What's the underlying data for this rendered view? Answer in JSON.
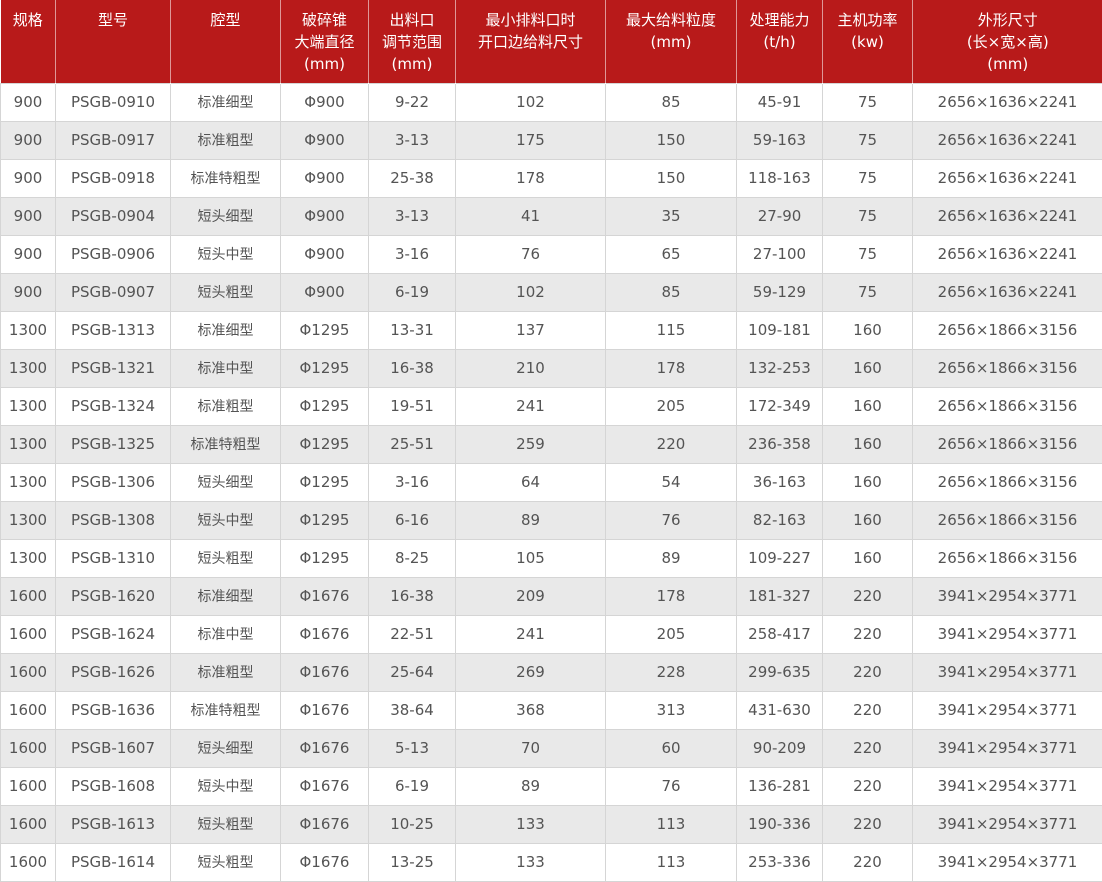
{
  "theme": {
    "header_bg": "#b81a1a",
    "header_text": "#ffffff",
    "row_bg": "#ffffff",
    "row_alt_bg": "#e9e9e9",
    "border_color": "#d5d5d5",
    "cell_text": "#545454"
  },
  "chart_data": {
    "type": "table",
    "columns": [
      {
        "key": "spec",
        "label": "规格",
        "lines": [
          "规格"
        ]
      },
      {
        "key": "model",
        "label": "型号",
        "lines": [
          "型号"
        ]
      },
      {
        "key": "cavity-type",
        "label": "腔型",
        "lines": [
          "腔型"
        ]
      },
      {
        "key": "cone-diameter",
        "label": "破碎锥大端直径(mm)",
        "lines": [
          "破碎锥",
          "大端直径",
          "(mm)"
        ]
      },
      {
        "key": "discharge-range",
        "label": "出料口调节范围(mm)",
        "lines": [
          "出料口",
          "调节范围",
          "(mm)"
        ]
      },
      {
        "key": "min-discharge-feed-size",
        "label": "最小排料口时开口边给料尺寸",
        "lines": [
          "最小排料口时",
          "开口边给料尺寸"
        ]
      },
      {
        "key": "max-feed-size",
        "label": "最大给料粒度(mm)",
        "lines": [
          "最大给料粒度",
          "(mm)"
        ]
      },
      {
        "key": "capacity",
        "label": "处理能力(t/h)",
        "lines": [
          "处理能力",
          "(t/h)"
        ]
      },
      {
        "key": "motor-power",
        "label": "主机功率(kw)",
        "lines": [
          "主机功率",
          "(kw)"
        ]
      },
      {
        "key": "dimensions",
        "label": "外形尺寸(长×宽×高)(mm)",
        "lines": [
          "外形尺寸",
          "(长×宽×高)",
          "(mm)"
        ]
      }
    ],
    "rows": [
      [
        "900",
        "PSGB-0910",
        "标准细型",
        "Φ900",
        "9-22",
        "102",
        "85",
        "45-91",
        "75",
        "2656×1636×2241"
      ],
      [
        "900",
        "PSGB-0917",
        "标准粗型",
        "Φ900",
        "3-13",
        "175",
        "150",
        "59-163",
        "75",
        "2656×1636×2241"
      ],
      [
        "900",
        "PSGB-0918",
        "标准特粗型",
        "Φ900",
        "25-38",
        "178",
        "150",
        "118-163",
        "75",
        "2656×1636×2241"
      ],
      [
        "900",
        "PSGB-0904",
        "短头细型",
        "Φ900",
        "3-13",
        "41",
        "35",
        "27-90",
        "75",
        "2656×1636×2241"
      ],
      [
        "900",
        "PSGB-0906",
        "短头中型",
        "Φ900",
        "3-16",
        "76",
        "65",
        "27-100",
        "75",
        "2656×1636×2241"
      ],
      [
        "900",
        "PSGB-0907",
        "短头粗型",
        "Φ900",
        "6-19",
        "102",
        "85",
        "59-129",
        "75",
        "2656×1636×2241"
      ],
      [
        "1300",
        "PSGB-1313",
        "标准细型",
        "Φ1295",
        "13-31",
        "137",
        "115",
        "109-181",
        "160",
        "2656×1866×3156"
      ],
      [
        "1300",
        "PSGB-1321",
        "标准中型",
        "Φ1295",
        "16-38",
        "210",
        "178",
        "132-253",
        "160",
        "2656×1866×3156"
      ],
      [
        "1300",
        "PSGB-1324",
        "标准粗型",
        "Φ1295",
        "19-51",
        "241",
        "205",
        "172-349",
        "160",
        "2656×1866×3156"
      ],
      [
        "1300",
        "PSGB-1325",
        "标准特粗型",
        "Φ1295",
        "25-51",
        "259",
        "220",
        "236-358",
        "160",
        "2656×1866×3156"
      ],
      [
        "1300",
        "PSGB-1306",
        "短头细型",
        "Φ1295",
        "3-16",
        "64",
        "54",
        "36-163",
        "160",
        "2656×1866×3156"
      ],
      [
        "1300",
        "PSGB-1308",
        "短头中型",
        "Φ1295",
        "6-16",
        "89",
        "76",
        "82-163",
        "160",
        "2656×1866×3156"
      ],
      [
        "1300",
        "PSGB-1310",
        "短头粗型",
        "Φ1295",
        "8-25",
        "105",
        "89",
        "109-227",
        "160",
        "2656×1866×3156"
      ],
      [
        "1600",
        "PSGB-1620",
        "标准细型",
        "Φ1676",
        "16-38",
        "209",
        "178",
        "181-327",
        "220",
        "3941×2954×3771"
      ],
      [
        "1600",
        "PSGB-1624",
        "标准中型",
        "Φ1676",
        "22-51",
        "241",
        "205",
        "258-417",
        "220",
        "3941×2954×3771"
      ],
      [
        "1600",
        "PSGB-1626",
        "标准粗型",
        "Φ1676",
        "25-64",
        "269",
        "228",
        "299-635",
        "220",
        "3941×2954×3771"
      ],
      [
        "1600",
        "PSGB-1636",
        "标准特粗型",
        "Φ1676",
        "38-64",
        "368",
        "313",
        "431-630",
        "220",
        "3941×2954×3771"
      ],
      [
        "1600",
        "PSGB-1607",
        "短头细型",
        "Φ1676",
        "5-13",
        "70",
        "60",
        "90-209",
        "220",
        "3941×2954×3771"
      ],
      [
        "1600",
        "PSGB-1608",
        "短头中型",
        "Φ1676",
        "6-19",
        "89",
        "76",
        "136-281",
        "220",
        "3941×2954×3771"
      ],
      [
        "1600",
        "PSGB-1613",
        "短头粗型",
        "Φ1676",
        "10-25",
        "133",
        "113",
        "190-336",
        "220",
        "3941×2954×3771"
      ],
      [
        "1600",
        "PSGB-1614",
        "短头粗型",
        "Φ1676",
        "13-25",
        "133",
        "113",
        "253-336",
        "220",
        "3941×2954×3771"
      ]
    ]
  }
}
